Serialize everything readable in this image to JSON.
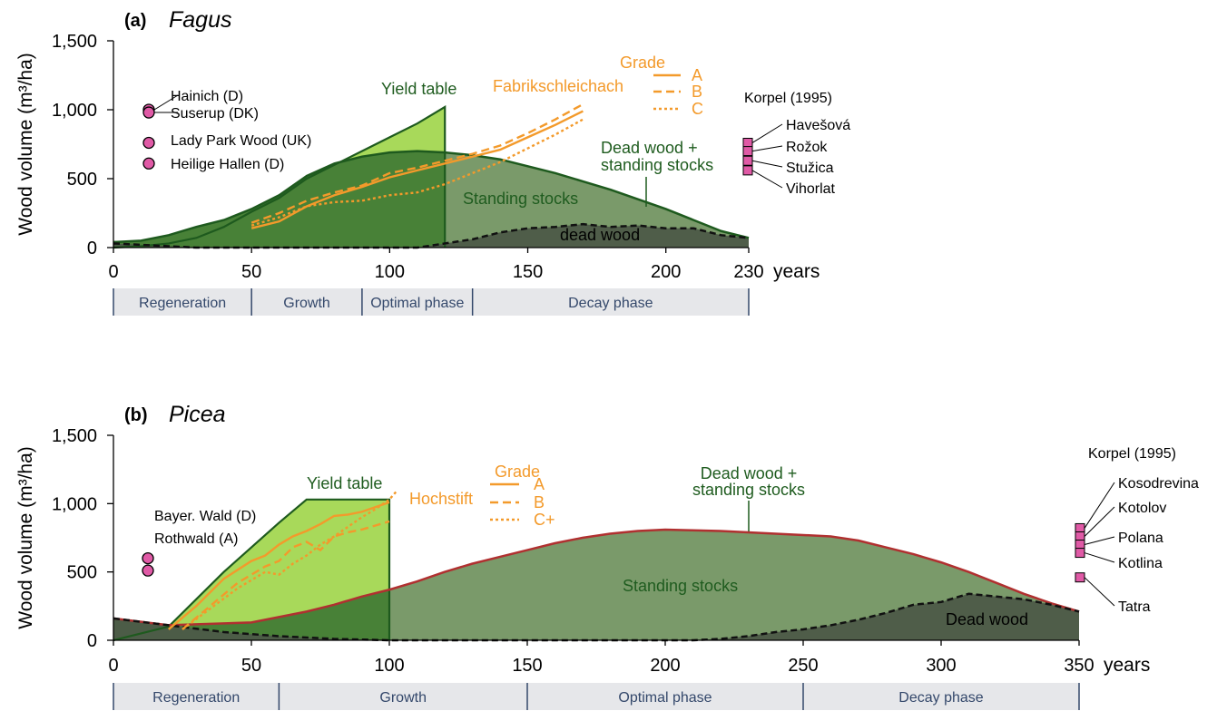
{
  "colors": {
    "yield": "#a8d95a",
    "yield_edge": "#1e5a1e",
    "standing": "#7a9a6a",
    "dead": "#4d5a48",
    "optimal_fill": "#3f7d2e",
    "orange": "#f39a2b",
    "green_text": "#1f5c1f",
    "pink": "#e05aa6",
    "red_edge": "#b03030",
    "phase_bg": "#e6e7ea",
    "phase_text": "#34486b"
  },
  "y_axis_label": "Wood volume (m³/ha)",
  "chart_data": [
    {
      "panel_letter": "(a)",
      "genus": "Fagus",
      "type": "area",
      "x_unit": "years",
      "xlim": [
        0,
        230
      ],
      "ylim": [
        0,
        1500
      ],
      "x_ticks": [
        0,
        50,
        100,
        150,
        200,
        230
      ],
      "y_ticks": [
        0,
        500,
        1000,
        1500
      ],
      "y_tick_labels": [
        "0",
        "500",
        "1,000",
        "1,500"
      ],
      "series": [
        {
          "name": "Yield table",
          "kind": "area",
          "x": [
            0,
            10,
            20,
            30,
            40,
            50,
            60,
            70,
            80,
            90,
            100,
            110,
            120
          ],
          "y": [
            0,
            10,
            30,
            70,
            150,
            260,
            360,
            500,
            600,
            700,
            800,
            900,
            1020
          ]
        },
        {
          "name": "Dead wood + standing stocks",
          "kind": "area",
          "x": [
            0,
            10,
            20,
            30,
            40,
            50,
            60,
            70,
            80,
            90,
            100,
            110,
            120,
            130,
            140,
            150,
            160,
            170,
            180,
            190,
            200,
            210,
            220,
            230
          ],
          "y": [
            40,
            50,
            90,
            150,
            200,
            280,
            380,
            520,
            610,
            660,
            690,
            700,
            690,
            670,
            640,
            590,
            540,
            480,
            420,
            350,
            280,
            200,
            120,
            70
          ]
        },
        {
          "name": "dead wood",
          "kind": "area",
          "x": [
            0,
            10,
            20,
            30,
            110,
            120,
            130,
            140,
            150,
            160,
            170,
            180,
            190,
            200,
            210,
            220,
            230
          ],
          "y": [
            30,
            20,
            10,
            0,
            0,
            30,
            60,
            110,
            140,
            150,
            170,
            150,
            160,
            140,
            140,
            90,
            70
          ]
        },
        {
          "name": "A",
          "kind": "line",
          "x": [
            50,
            60,
            70,
            80,
            90,
            100,
            110,
            120,
            130,
            140,
            150,
            160,
            170
          ],
          "y": [
            140,
            190,
            300,
            380,
            440,
            510,
            560,
            610,
            660,
            710,
            800,
            890,
            990
          ]
        },
        {
          "name": "B",
          "kind": "line",
          "x": [
            50,
            60,
            70,
            80,
            90,
            100,
            110,
            120,
            130,
            140,
            150,
            160,
            170
          ],
          "y": [
            180,
            250,
            340,
            400,
            450,
            540,
            580,
            630,
            680,
            740,
            830,
            930,
            1040
          ]
        },
        {
          "name": "C",
          "kind": "line",
          "x": [
            50,
            60,
            70,
            80,
            90,
            100,
            110,
            120,
            130,
            140,
            150,
            160,
            170
          ],
          "y": [
            160,
            220,
            300,
            330,
            340,
            380,
            400,
            460,
            540,
            620,
            720,
            820,
            930
          ]
        }
      ],
      "phases": [
        {
          "label": "Regeneration",
          "start": 0,
          "end": 50
        },
        {
          "label": "Growth",
          "start": 50,
          "end": 90
        },
        {
          "label": "Optimal phase",
          "start": 90,
          "end": 130
        },
        {
          "label": "Decay phase",
          "start": 130,
          "end": 230
        }
      ],
      "labels": {
        "yield_table": "Yield table",
        "standing": "Standing stocks",
        "dead": "dead wood",
        "total": "Dead wood +",
        "total2": "standing stocks",
        "site": "Fabrikschleichach",
        "grade": "Grade"
      },
      "reserves": [
        {
          "name": "Hainich (D)",
          "value": 1000
        },
        {
          "name": "Suserup (DK)",
          "value": 980
        },
        {
          "name": "Lady Park Wood (UK)",
          "value": 760
        },
        {
          "name": "Heilige Hallen (D)",
          "value": 610
        }
      ],
      "korpel_title": "Korpel (1995)",
      "korpel": [
        {
          "name": "Havešová",
          "value": 760
        },
        {
          "name": "Rožok",
          "value": 700
        },
        {
          "name": "Stužica",
          "value": 630
        },
        {
          "name": "Vihorlat",
          "value": 560
        }
      ]
    },
    {
      "panel_letter": "(b)",
      "genus": "Picea",
      "type": "area",
      "x_unit": "years",
      "xlim": [
        0,
        350
      ],
      "ylim": [
        0,
        1500
      ],
      "x_ticks": [
        0,
        50,
        100,
        150,
        200,
        250,
        300,
        350
      ],
      "y_ticks": [
        0,
        500,
        1000,
        1500
      ],
      "y_tick_labels": [
        "0",
        "500",
        "1,000",
        "1,500"
      ],
      "series": [
        {
          "name": "Yield table",
          "kind": "area",
          "x": [
            0,
            20,
            40,
            60,
            70,
            100
          ],
          "y": [
            0,
            100,
            500,
            860,
            1030,
            1030
          ]
        },
        {
          "name": "Dead wood + standing stocks",
          "kind": "area",
          "x": [
            0,
            20,
            50,
            60,
            70,
            80,
            90,
            100,
            110,
            120,
            130,
            140,
            150,
            160,
            170,
            180,
            190,
            200,
            210,
            220,
            230,
            240,
            250,
            260,
            270,
            280,
            290,
            300,
            310,
            320,
            330,
            340,
            350
          ],
          "y": [
            160,
            110,
            130,
            170,
            210,
            260,
            320,
            370,
            430,
            500,
            560,
            610,
            660,
            710,
            750,
            780,
            800,
            810,
            805,
            800,
            790,
            780,
            770,
            760,
            730,
            680,
            630,
            570,
            500,
            420,
            340,
            270,
            210
          ]
        },
        {
          "name": "Dead wood",
          "kind": "area",
          "x": [
            0,
            20,
            40,
            60,
            80,
            100,
            110,
            210,
            220,
            230,
            240,
            250,
            260,
            270,
            280,
            290,
            300,
            310,
            320,
            330,
            340,
            350
          ],
          "y": [
            160,
            110,
            60,
            30,
            10,
            0,
            0,
            0,
            10,
            30,
            60,
            80,
            110,
            150,
            200,
            260,
            280,
            340,
            320,
            300,
            260,
            210
          ]
        },
        {
          "name": "A",
          "kind": "line",
          "x": [
            20,
            30,
            40,
            50,
            55,
            60,
            65,
            70,
            75,
            80,
            85,
            90,
            100
          ],
          "y": [
            80,
            250,
            450,
            580,
            620,
            700,
            760,
            800,
            850,
            910,
            920,
            940,
            1010
          ]
        },
        {
          "name": "B",
          "kind": "line",
          "x": [
            25,
            35,
            45,
            55,
            60,
            65,
            70,
            75,
            80,
            85,
            90,
            100
          ],
          "y": [
            80,
            250,
            420,
            540,
            580,
            680,
            720,
            660,
            760,
            790,
            810,
            870
          ]
        },
        {
          "name": "C+",
          "kind": "line",
          "x": [
            25,
            35,
            45,
            55,
            60,
            65,
            70,
            75,
            80,
            85,
            90,
            95,
            100,
            103
          ],
          "y": [
            80,
            230,
            380,
            500,
            480,
            560,
            620,
            700,
            760,
            830,
            900,
            960,
            1030,
            1100
          ]
        }
      ],
      "phases": [
        {
          "label": "Regeneration",
          "start": 0,
          "end": 60
        },
        {
          "label": "Growth",
          "start": 60,
          "end": 150
        },
        {
          "label": "Optimal phase",
          "start": 150,
          "end": 250
        },
        {
          "label": "Decay phase",
          "start": 250,
          "end": 350
        }
      ],
      "labels": {
        "yield_table": "Yield table",
        "standing": "Standing stocks",
        "dead": "Dead wood",
        "total": "Dead wood +",
        "total2": "standing stocks",
        "site": "Hochstift",
        "grade": "Grade"
      },
      "reserves": [
        {
          "name": "Bayer. Wald (D)",
          "value": 600
        },
        {
          "name": "Rothwald (A)",
          "value": 510
        }
      ],
      "korpel_title": "Korpel (1995)",
      "korpel": [
        {
          "name": "Kosodrevina",
          "value": 820
        },
        {
          "name": "Kotolov",
          "value": 760
        },
        {
          "name": "Polana",
          "value": 700
        },
        {
          "name": "Kotlina",
          "value": 640
        },
        {
          "name": "Tatra",
          "value": 460
        }
      ]
    }
  ]
}
